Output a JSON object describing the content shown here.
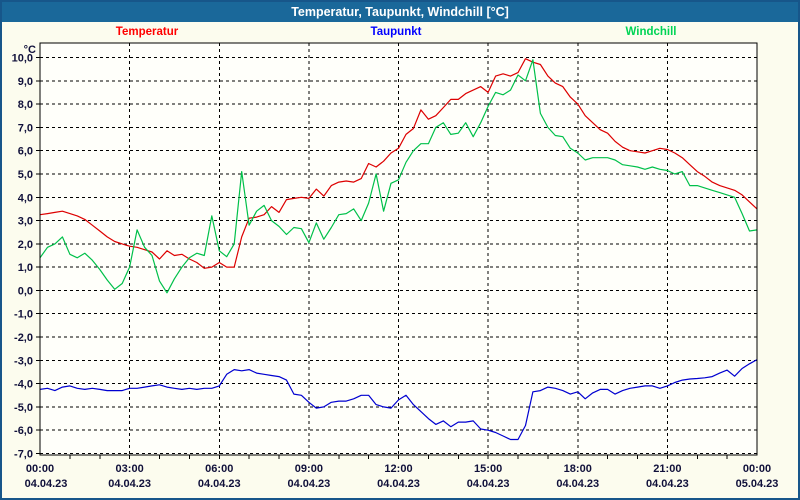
{
  "window": {
    "title": "Temperatur, Taupunkt, Windchill [°C]"
  },
  "legend": [
    {
      "label": "Temperatur",
      "color": "#ff0000"
    },
    {
      "label": "Taupunkt",
      "color": "#0000ff"
    },
    {
      "label": "Windchill",
      "color": "#00d455"
    }
  ],
  "colors": {
    "titlebar": "#1a689a",
    "window_border": "#17568a",
    "page_bg": "#fcfcee",
    "plot_bg": "#fffffa",
    "grid": "#000000",
    "label_text": "#10103a"
  },
  "axes": {
    "y_unit": "°C",
    "y_min": -7,
    "y_max": 10,
    "y_step": 1,
    "y_tick_labels": [
      "10,0",
      "9,0",
      "8,0",
      "7,0",
      "6,0",
      "5,0",
      "4,0",
      "3,0",
      "2,0",
      "1,0",
      "0,0",
      "-1,0",
      "-2,0",
      "-3,0",
      "-4,0",
      "-5,0",
      "-6,0",
      "-7,0"
    ],
    "x_major_hours": [
      0,
      3,
      6,
      9,
      12,
      15,
      18,
      21,
      24
    ],
    "x_time_labels": [
      "00:00",
      "03:00",
      "06:00",
      "09:00",
      "12:00",
      "15:00",
      "18:00",
      "21:00",
      "00:00"
    ],
    "x_date_labels": [
      "04.04.23",
      "04.04.23",
      "04.04.23",
      "04.04.23",
      "04.04.23",
      "04.04.23",
      "04.04.23",
      "04.04.23",
      "05.04.23"
    ],
    "x_minor_step_hours": 1
  },
  "chart_data": {
    "type": "line",
    "title": "Temperatur, Taupunkt, Windchill [°C]",
    "xlabel": "",
    "ylabel": "°C",
    "ylim": [
      -7,
      10
    ],
    "x_unit": "hours_since_2023-04-04_00:00",
    "grid": "dashed, 1 °C horizontal / 3 h vertical",
    "legend_position": "top",
    "x": [
      0,
      0.25,
      0.5,
      0.75,
      1,
      1.25,
      1.5,
      1.75,
      2,
      2.25,
      2.5,
      2.75,
      3,
      3.25,
      3.5,
      3.75,
      4,
      4.25,
      4.5,
      4.75,
      5,
      5.25,
      5.5,
      5.75,
      6,
      6.25,
      6.5,
      6.75,
      7,
      7.25,
      7.5,
      7.75,
      8,
      8.25,
      8.5,
      8.75,
      9,
      9.25,
      9.5,
      9.75,
      10,
      10.25,
      10.5,
      10.75,
      11,
      11.25,
      11.5,
      11.75,
      12,
      12.25,
      12.5,
      12.75,
      13,
      13.25,
      13.5,
      13.75,
      14,
      14.25,
      14.5,
      14.75,
      15,
      15.25,
      15.5,
      15.75,
      16,
      16.25,
      16.5,
      16.75,
      17,
      17.25,
      17.5,
      17.75,
      18,
      18.25,
      18.5,
      18.75,
      19,
      19.25,
      19.5,
      19.75,
      20,
      20.25,
      20.5,
      20.75,
      21,
      21.25,
      21.5,
      21.75,
      22,
      22.25,
      22.5,
      22.75,
      23,
      23.25,
      23.5,
      23.75,
      24
    ],
    "series": [
      {
        "name": "Temperatur",
        "color": "#dd0000",
        "values": [
          3.25,
          3.3,
          3.35,
          3.4,
          3.3,
          3.2,
          3.05,
          2.8,
          2.55,
          2.3,
          2.1,
          2.0,
          1.9,
          1.85,
          1.75,
          1.65,
          1.35,
          1.7,
          1.5,
          1.55,
          1.35,
          1.2,
          0.95,
          1.0,
          1.2,
          1.0,
          1.0,
          2.3,
          3.1,
          3.15,
          3.25,
          3.6,
          3.35,
          3.9,
          3.95,
          4.0,
          3.95,
          4.35,
          4.05,
          4.5,
          4.65,
          4.7,
          4.65,
          4.8,
          5.45,
          5.3,
          5.55,
          5.9,
          6.1,
          6.7,
          6.95,
          7.75,
          7.35,
          7.5,
          7.85,
          8.2,
          8.2,
          8.45,
          8.6,
          8.75,
          8.5,
          9.2,
          9.3,
          9.2,
          9.35,
          9.95,
          9.8,
          9.7,
          9.2,
          8.9,
          8.75,
          8.3,
          8.0,
          7.5,
          7.2,
          6.9,
          6.75,
          6.4,
          6.15,
          6.0,
          5.95,
          5.9,
          6.0,
          6.1,
          6.05,
          5.9,
          5.7,
          5.4,
          5.1,
          4.9,
          4.65,
          4.5,
          4.4,
          4.3,
          4.1,
          3.8,
          3.5
        ]
      },
      {
        "name": "Taupunkt",
        "color": "#0000d0",
        "values": [
          -4.25,
          -4.2,
          -4.3,
          -4.15,
          -4.1,
          -4.2,
          -4.25,
          -4.2,
          -4.25,
          -4.3,
          -4.3,
          -4.3,
          -4.2,
          -4.2,
          -4.15,
          -4.1,
          -4.05,
          -4.15,
          -4.2,
          -4.25,
          -4.2,
          -4.25,
          -4.2,
          -4.2,
          -4.1,
          -3.6,
          -3.4,
          -3.45,
          -3.4,
          -3.55,
          -3.6,
          -3.65,
          -3.7,
          -3.85,
          -4.45,
          -4.5,
          -4.8,
          -5.05,
          -5.0,
          -4.8,
          -4.75,
          -4.75,
          -4.65,
          -4.5,
          -4.5,
          -4.9,
          -5.0,
          -5.05,
          -4.7,
          -4.5,
          -4.9,
          -5.2,
          -5.5,
          -5.75,
          -5.6,
          -5.85,
          -5.65,
          -5.65,
          -5.6,
          -5.95,
          -6.0,
          -6.1,
          -6.25,
          -6.4,
          -6.4,
          -5.8,
          -4.35,
          -4.3,
          -4.15,
          -4.2,
          -4.3,
          -4.45,
          -4.35,
          -4.65,
          -4.4,
          -4.25,
          -4.25,
          -4.45,
          -4.3,
          -4.2,
          -4.15,
          -4.1,
          -4.1,
          -4.2,
          -4.1,
          -3.95,
          -3.85,
          -3.8,
          -3.78,
          -3.75,
          -3.7,
          -3.55,
          -3.42,
          -3.68,
          -3.35,
          -3.15,
          -2.97
        ]
      },
      {
        "name": "Windchill",
        "color": "#00c04a",
        "values": [
          1.4,
          1.85,
          2.0,
          2.3,
          1.55,
          1.4,
          1.6,
          1.3,
          0.9,
          0.45,
          0.05,
          0.3,
          1.0,
          2.6,
          1.85,
          1.5,
          0.4,
          -0.1,
          0.5,
          1.0,
          1.4,
          1.6,
          1.5,
          3.2,
          1.7,
          1.45,
          2.0,
          5.1,
          2.8,
          3.4,
          3.65,
          3.0,
          2.75,
          2.4,
          2.7,
          2.65,
          2.05,
          2.9,
          2.2,
          2.7,
          3.25,
          3.3,
          3.5,
          3.0,
          3.75,
          5.0,
          3.4,
          4.6,
          4.75,
          5.5,
          6.0,
          6.3,
          6.3,
          7.0,
          7.2,
          6.7,
          6.75,
          7.2,
          6.6,
          7.2,
          7.9,
          8.5,
          8.4,
          8.6,
          9.25,
          9.0,
          9.9,
          7.6,
          7.0,
          6.65,
          6.6,
          6.1,
          5.9,
          5.6,
          5.7,
          5.7,
          5.7,
          5.6,
          5.4,
          5.35,
          5.3,
          5.2,
          5.3,
          5.2,
          5.15,
          5.0,
          5.1,
          4.5,
          4.5,
          4.4,
          4.3,
          4.2,
          4.1,
          4.0,
          3.3,
          2.55,
          2.6
        ]
      }
    ]
  }
}
